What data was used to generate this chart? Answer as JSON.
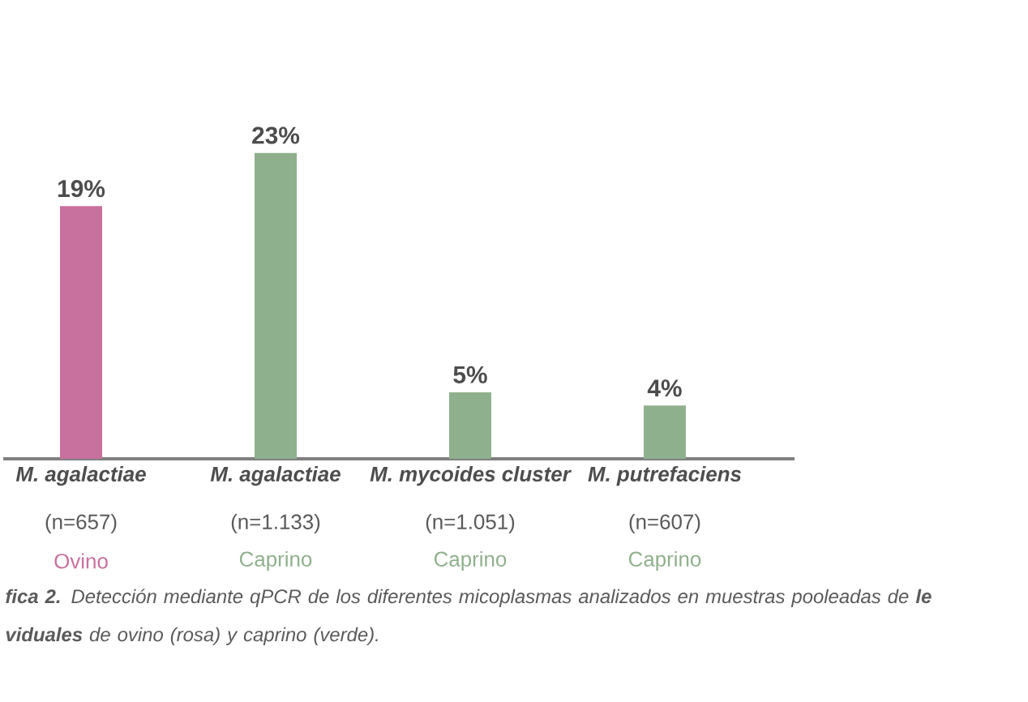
{
  "chart_data": {
    "type": "bar",
    "categories": [
      "M. agalactiae",
      "M. agalactiae",
      "M. mycoides cluster",
      "M. putrefaciens"
    ],
    "series": [
      {
        "name": "Ovino",
        "color": "#c8709e",
        "values": [
          19,
          null,
          null,
          null
        ],
        "value_labels": [
          "19%",
          null,
          null,
          null
        ]
      },
      {
        "name": "Caprino",
        "color": "#8fb08c",
        "values": [
          null,
          23,
          5,
          4
        ],
        "value_labels": [
          null,
          "23%",
          "5%",
          "4%"
        ]
      }
    ],
    "annotations": [
      "(n=657)",
      "(n=1.133)",
      "(n=1.051)",
      "(n=607)",
      "**fica 2.** Detección mediante qPCR de los diferentes micoplasmas analizados en muestras pooleadas de **le**",
      "**viduales** de ovino (rosa) y caprino (verde)."
    ]
  }
}
